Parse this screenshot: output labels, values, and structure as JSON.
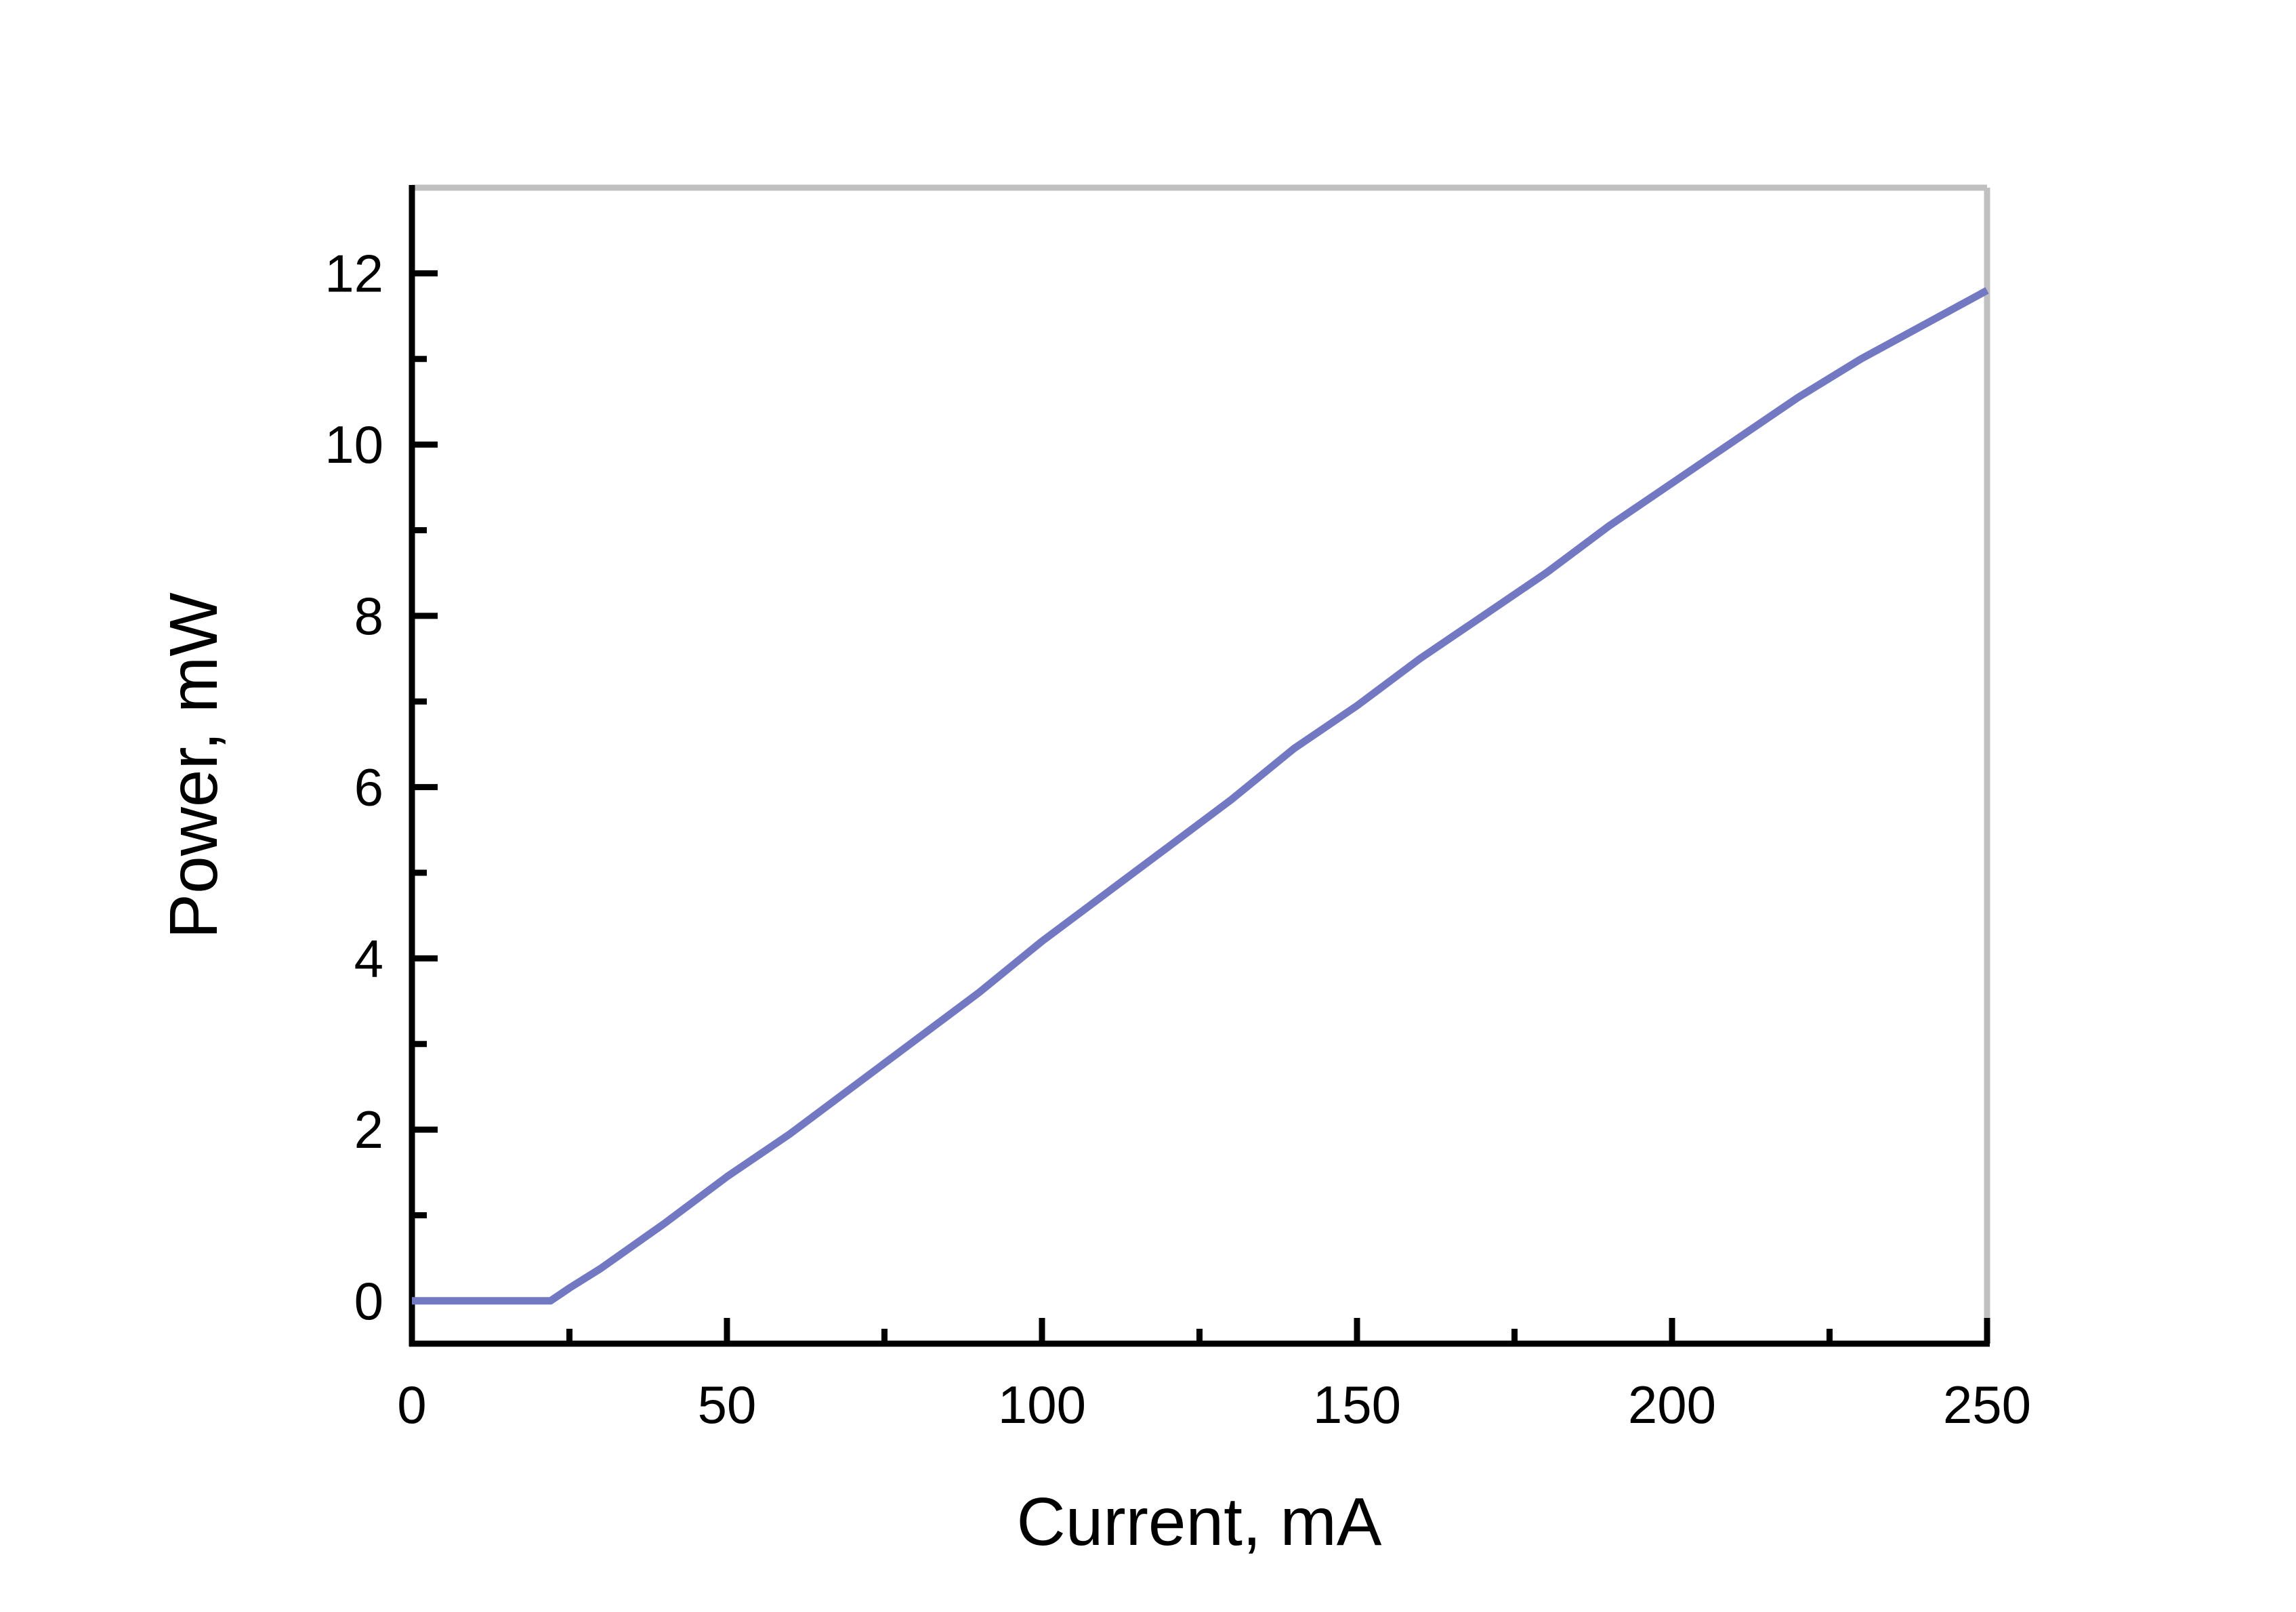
{
  "chart_data": {
    "type": "line",
    "x_label": "Current, mA",
    "y_label": "Power, mW",
    "x": [
      0,
      10,
      20,
      22,
      25,
      30,
      40,
      50,
      60,
      70,
      80,
      90,
      100,
      110,
      120,
      130,
      140,
      150,
      160,
      170,
      180,
      190,
      200,
      210,
      220,
      230,
      240,
      250
    ],
    "series": [
      {
        "color": "#7278c2",
        "values": [
          0,
          0,
          0,
          0,
          0.15,
          0.38,
          0.9,
          1.45,
          1.95,
          2.5,
          3.05,
          3.6,
          4.2,
          4.75,
          5.3,
          5.85,
          6.45,
          6.95,
          7.5,
          8.0,
          8.5,
          9.05,
          9.55,
          10.05,
          10.55,
          11.0,
          11.4,
          11.8
        ]
      }
    ],
    "xlim": [
      0,
      250
    ],
    "xticks": [
      0,
      50,
      100,
      150,
      200,
      250
    ],
    "x_minor_ticks": [
      25,
      75,
      125,
      175,
      225
    ],
    "ylim": [
      -0.5,
      13
    ],
    "yticks": [
      0,
      2,
      4,
      6,
      8,
      10,
      12
    ],
    "y_minor_ticks": [
      1,
      3,
      5,
      7,
      9,
      11
    ],
    "grid": false
  }
}
